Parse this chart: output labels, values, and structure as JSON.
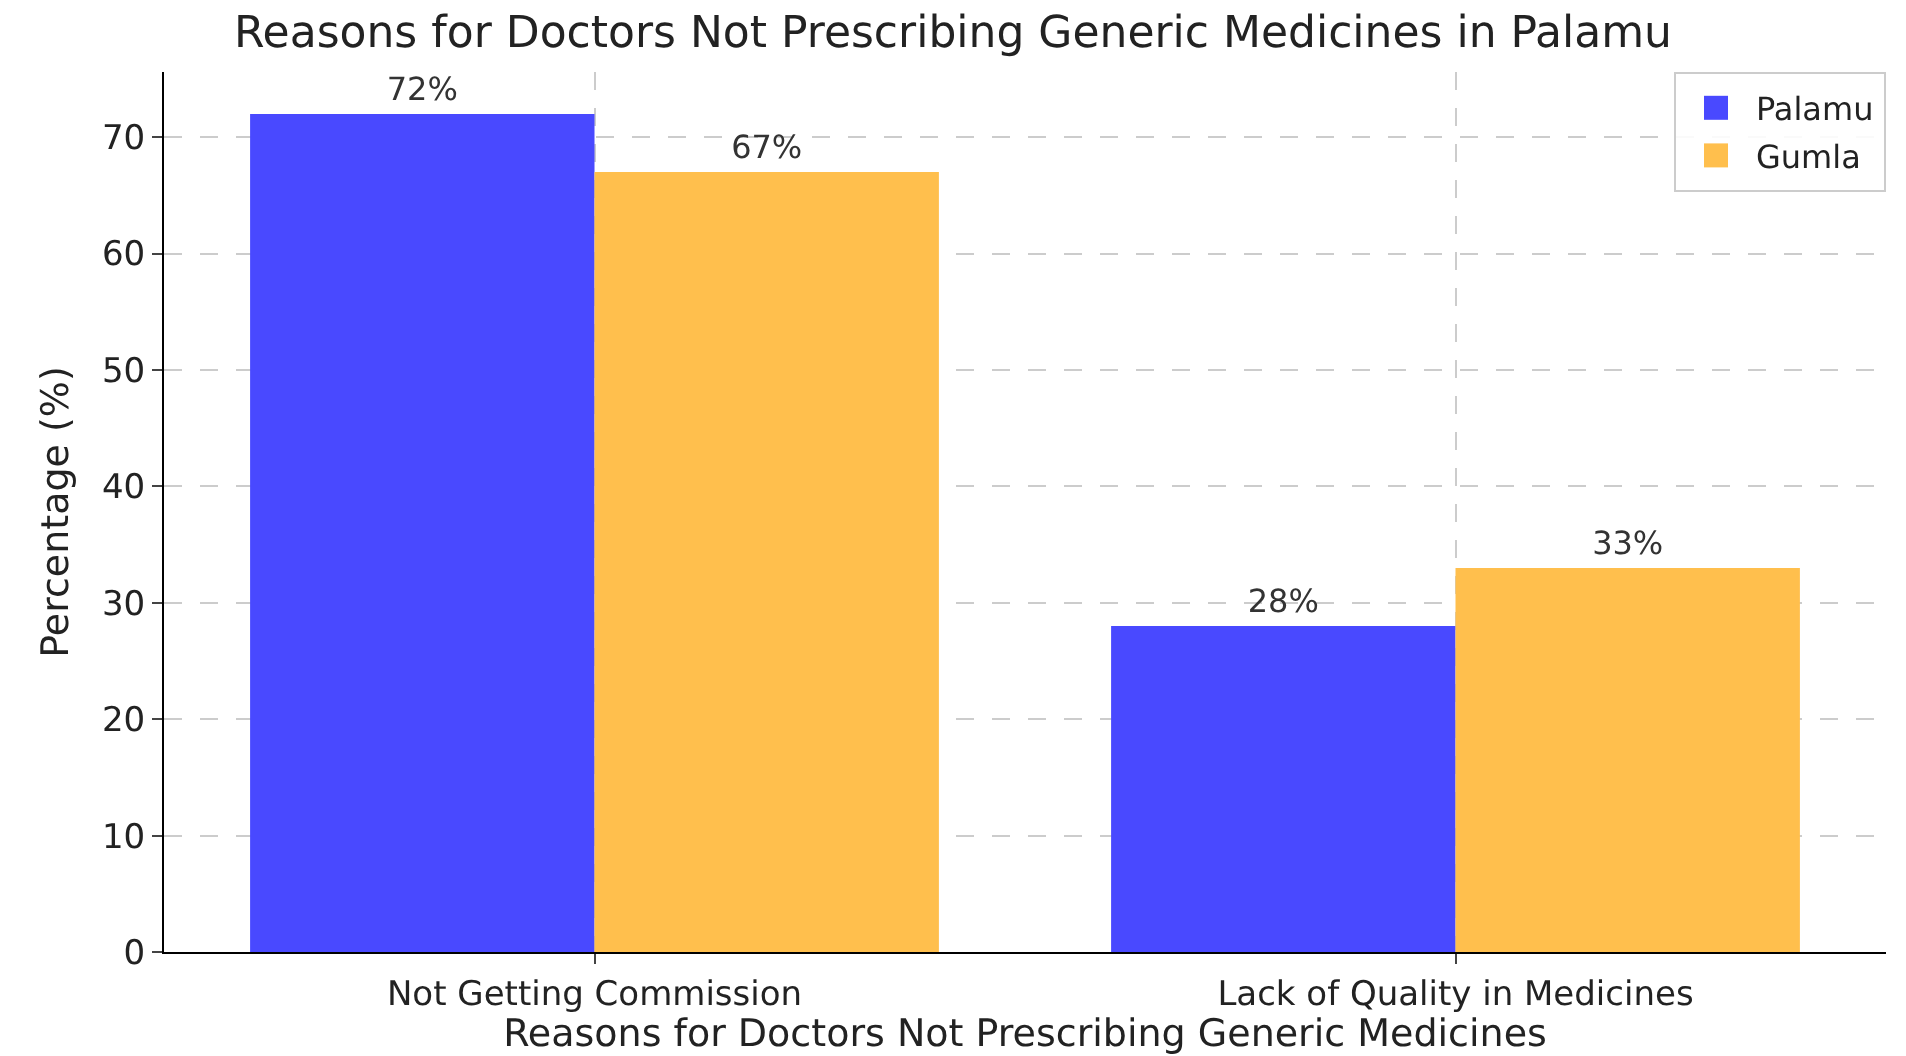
{
  "chart_data": {
    "type": "bar",
    "title": "Reasons for Doctors Not Prescribing Generic Medicines in Palamu",
    "xlabel": "Reasons for Doctors Not Prescribing Generic Medicines",
    "ylabel": "Percentage (%)",
    "categories": [
      "Not Getting Commission",
      "Lack of Quality in Medicines"
    ],
    "series": [
      {
        "name": "Palamu",
        "color": "#4949ff",
        "values": [
          72,
          28
        ],
        "value_labels": [
          "72%",
          "28%"
        ]
      },
      {
        "name": "Gumla",
        "color": "#ffbf4d",
        "values": [
          67,
          33
        ],
        "value_labels": [
          "67%",
          "33%"
        ]
      }
    ],
    "ylim": [
      0,
      75.6
    ],
    "yticks": [
      0,
      10,
      20,
      30,
      40,
      50,
      60,
      70
    ],
    "grid": true,
    "legend": "top right"
  }
}
